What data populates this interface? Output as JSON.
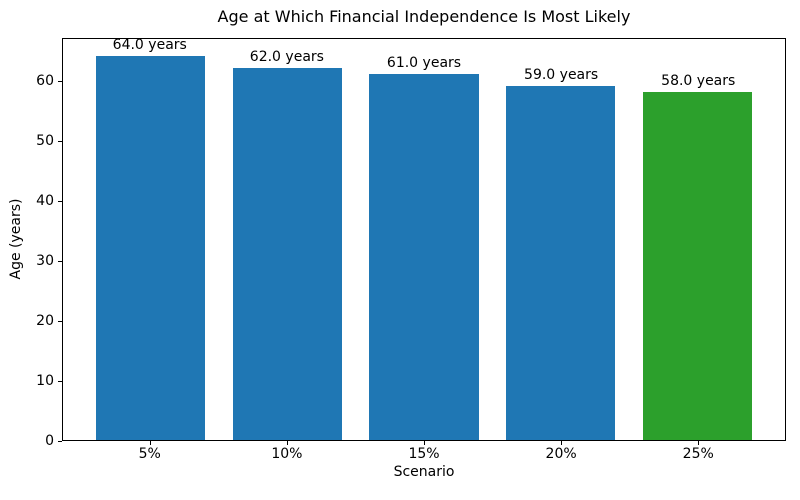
{
  "chart_data": {
    "type": "bar",
    "title": "Age at Which Financial Independence Is Most Likely",
    "xlabel": "Scenario",
    "ylabel": "Age (years)",
    "categories": [
      "5%",
      "10%",
      "15%",
      "20%",
      "25%"
    ],
    "values": [
      64.0,
      62.0,
      61.0,
      59.0,
      58.0
    ],
    "bar_labels": [
      "64.0 years",
      "62.0 years",
      "61.0 years",
      "59.0 years",
      "58.0 years"
    ],
    "bar_colors": [
      "#1f77b4",
      "#1f77b4",
      "#1f77b4",
      "#1f77b4",
      "#2ca02c"
    ],
    "yticks": [
      0,
      10,
      20,
      30,
      40,
      50,
      60
    ],
    "ylim": [
      0,
      67.2
    ],
    "xlim": [
      -0.64,
      4.64
    ],
    "bar_width": 0.8,
    "grid": false,
    "legend_position": "none",
    "background_color": "#ffffff",
    "spine_color": "#000000",
    "text_color": "#000000"
  }
}
